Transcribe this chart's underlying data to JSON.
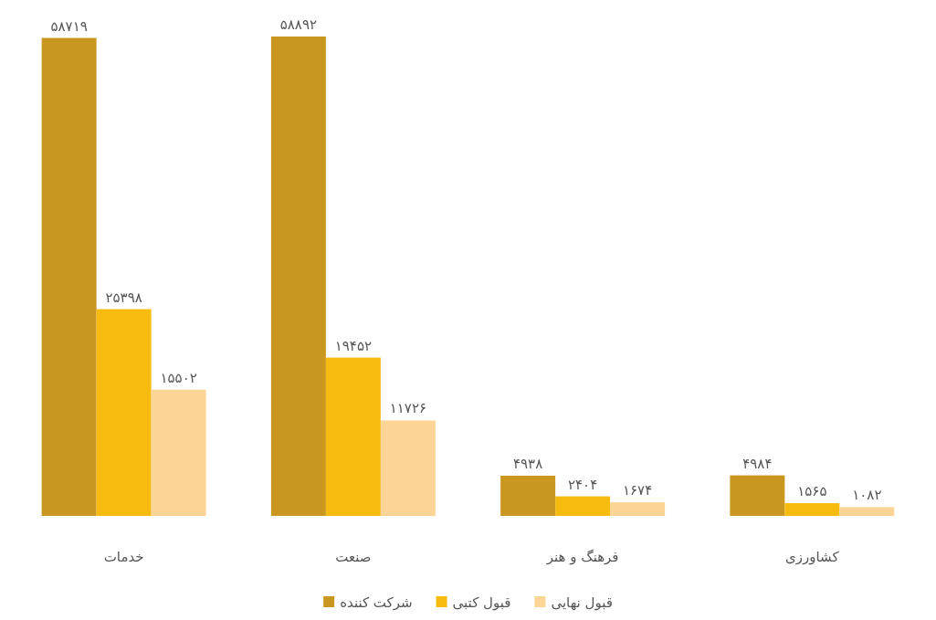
{
  "chart_data": {
    "type": "bar",
    "categories": [
      "خدمات",
      "صنعت",
      "فرهنگ و هنر",
      "کشاورزی"
    ],
    "series": [
      {
        "name": "شرکت کننده",
        "color": "#c9971f",
        "values": [
          58719,
          58892,
          4938,
          4984
        ],
        "value_labels": [
          "۵۸۷۱۹",
          "۵۸۸۹۲",
          "۴۹۳۸",
          "۴۹۸۴"
        ]
      },
      {
        "name": "قبول کتبی",
        "color": "#f7bb10",
        "values": [
          25398,
          19452,
          2404,
          1565
        ],
        "value_labels": [
          "۲۵۳۹۸",
          "۱۹۴۵۲",
          "۲۴۰۴",
          "۱۵۶۵"
        ]
      },
      {
        "name": "قبول نهایی",
        "color": "#fcd596",
        "values": [
          15502,
          11726,
          1674,
          1082
        ],
        "value_labels": [
          "۱۵۵۰۲",
          "۱۱۷۲۶",
          "۱۶۷۴",
          "۱۰۸۲"
        ]
      }
    ],
    "legend": "bottom"
  }
}
